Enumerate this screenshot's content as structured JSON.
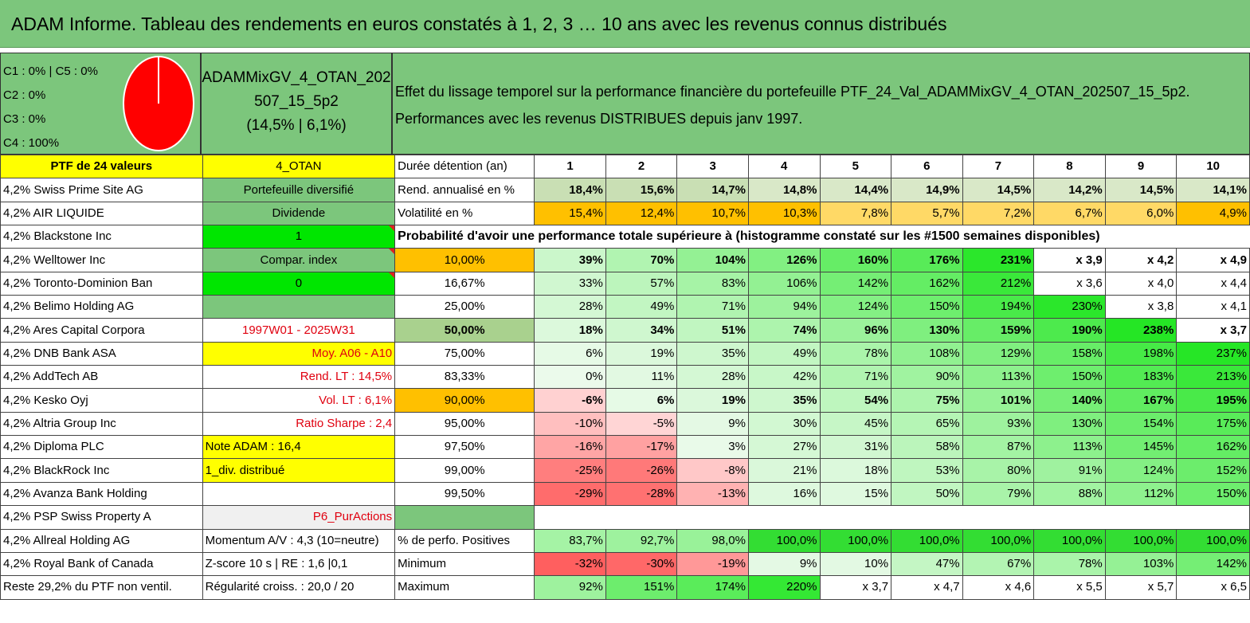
{
  "title": "ADAM Informe. Tableau des rendements en euros constatés à 1, 2, 3 … 10 ans avec les revenus connus distribués",
  "header": {
    "pie_labels": [
      "C1 : 0% | C5 : 0%",
      "C2 : 0%",
      "C3 : 0%",
      "C4 : 100%"
    ],
    "pie_color": "#ff0000",
    "portfolio_name": [
      "ADAMMixGV_4_OTAN_202",
      "507_15_5p2",
      "(14,5% | 6,1%)"
    ],
    "effect_lines": [
      "Effet du lissage temporel sur la performance financière du portefeuille PTF_24_Val_ADAMMixGV_4_OTAN_202507_15_5p2.",
      "Performances avec les revenus DISTRIBUES depuis janv 1997."
    ]
  },
  "colors": {
    "yellow": "#ffff00",
    "green_header": "#7cc67c",
    "green_bright": "#00e600",
    "orange": "#ffc000",
    "light_grey": "#f0f0f0"
  },
  "rows": [
    {
      "c0": "PTF de 24 valeurs",
      "c1": "4_OTAN",
      "c2": "Durée détention (an)",
      "cells": [
        "1",
        "2",
        "3",
        "4",
        "5",
        "6",
        "7",
        "8",
        "9",
        "10"
      ]
    },
    {
      "c0": "4,2% Swiss Prime Site AG",
      "c1": "Portefeuille diversifié",
      "c2": "Rend. annualisé en %",
      "cells": [
        "18,4%",
        "15,6%",
        "14,7%",
        "14,8%",
        "14,4%",
        "14,9%",
        "14,5%",
        "14,2%",
        "14,5%",
        "14,1%"
      ]
    },
    {
      "c0": "4,2% AIR LIQUIDE",
      "c1": "Dividende",
      "c2": "Volatilité en %",
      "cells": [
        "15,4%",
        "12,4%",
        "10,7%",
        "10,3%",
        "7,8%",
        "5,7%",
        "7,2%",
        "6,7%",
        "6,0%",
        "4,9%"
      ]
    },
    {
      "c0": "4,2% Blackstone Inc",
      "c1": "1",
      "c2": "Probabilité d'avoir une performance totale supérieure à (histogramme constaté sur les #1500 semaines disponibles)",
      "cells": []
    },
    {
      "c0": "4,2% Welltower Inc",
      "c1": "Compar. index",
      "c2": "10,00%",
      "cells": [
        "39%",
        "70%",
        "104%",
        "126%",
        "160%",
        "176%",
        "231%",
        "x 3,9",
        "x 4,2",
        "x 4,9"
      ]
    },
    {
      "c0": "4,2% Toronto-Dominion Ban",
      "c1": "0",
      "c2": "16,67%",
      "cells": [
        "33%",
        "57%",
        "83%",
        "106%",
        "142%",
        "162%",
        "212%",
        "x 3,6",
        "x 4,0",
        "x 4,4"
      ]
    },
    {
      "c0": "4,2% Belimo Holding AG",
      "c1": "",
      "c2": "25,00%",
      "cells": [
        "28%",
        "49%",
        "71%",
        "94%",
        "124%",
        "150%",
        "194%",
        "230%",
        "x 3,8",
        "x 4,1"
      ]
    },
    {
      "c0": "4,2% Ares Capital Corpora",
      "c1": "1997W01 - 2025W31",
      "c2": "50,00%",
      "cells": [
        "18%",
        "34%",
        "51%",
        "74%",
        "96%",
        "130%",
        "159%",
        "190%",
        "238%",
        "x 3,7"
      ]
    },
    {
      "c0": "4,2% DNB Bank ASA",
      "c1": "Moy. A06 - A10",
      "c2": "75,00%",
      "cells": [
        "6%",
        "19%",
        "35%",
        "49%",
        "78%",
        "108%",
        "129%",
        "158%",
        "198%",
        "237%"
      ]
    },
    {
      "c0": "4,2% AddTech AB",
      "c1": "Rend. LT : 14,5%",
      "c2": "83,33%",
      "cells": [
        "0%",
        "11%",
        "28%",
        "42%",
        "71%",
        "90%",
        "113%",
        "150%",
        "183%",
        "213%"
      ]
    },
    {
      "c0": "4,2% Kesko Oyj",
      "c1": "Vol. LT : 6,1%",
      "c2": "90,00%",
      "cells": [
        "-6%",
        "6%",
        "19%",
        "35%",
        "54%",
        "75%",
        "101%",
        "140%",
        "167%",
        "195%"
      ]
    },
    {
      "c0": "4,2% Altria Group Inc",
      "c1": "Ratio Sharpe : 2,4",
      "c2": "95,00%",
      "cells": [
        "-10%",
        "-5%",
        "9%",
        "30%",
        "45%",
        "65%",
        "93%",
        "130%",
        "154%",
        "175%"
      ]
    },
    {
      "c0": "4,2% Diploma PLC",
      "c1": "Note ADAM : 16,4",
      "c2": "97,50%",
      "cells": [
        "-16%",
        "-17%",
        "3%",
        "27%",
        "31%",
        "58%",
        "87%",
        "113%",
        "145%",
        "162%"
      ]
    },
    {
      "c0": "4,2% BlackRock Inc",
      "c1": "1_div. distribué",
      "c2": "99,00%",
      "cells": [
        "-25%",
        "-26%",
        "-8%",
        "21%",
        "18%",
        "53%",
        "80%",
        "91%",
        "124%",
        "152%"
      ]
    },
    {
      "c0": "4,2% Avanza Bank Holding",
      "c1": "",
      "c2": "99,50%",
      "cells": [
        "-29%",
        "-28%",
        "-13%",
        "16%",
        "15%",
        "50%",
        "79%",
        "88%",
        "112%",
        "150%"
      ]
    },
    {
      "c0": "4,2% PSP Swiss Property A",
      "c1": "P6_PurActions",
      "c2": "",
      "cells": []
    },
    {
      "c0": "4,2% Allreal Holding AG",
      "c1": "Momentum A/V : 4,3 (10=neutre)",
      "c2": "% de perfo. Positives",
      "cells": [
        "83,7%",
        "92,7%",
        "98,0%",
        "100,0%",
        "100,0%",
        "100,0%",
        "100,0%",
        "100,0%",
        "100,0%",
        "100,0%"
      ]
    },
    {
      "c0": "4,2% Royal Bank of Canada",
      "c1": "Z-score 10 s | RE : 1,6 |0,1",
      "c2": "Minimum",
      "cells": [
        "-32%",
        "-30%",
        "-19%",
        "9%",
        "10%",
        "47%",
        "67%",
        "78%",
        "103%",
        "142%"
      ]
    },
    {
      "c0": "Reste 29,2% du PTF non ventil.",
      "c1": "Régularité croiss. : 20,0 / 20",
      "c2": "Maximum",
      "cells": [
        "92%",
        "151%",
        "174%",
        "220%",
        "x 3,7",
        "x 4,7",
        "x 4,6",
        "x 5,5",
        "x 5,7",
        "x 6,5"
      ]
    }
  ]
}
